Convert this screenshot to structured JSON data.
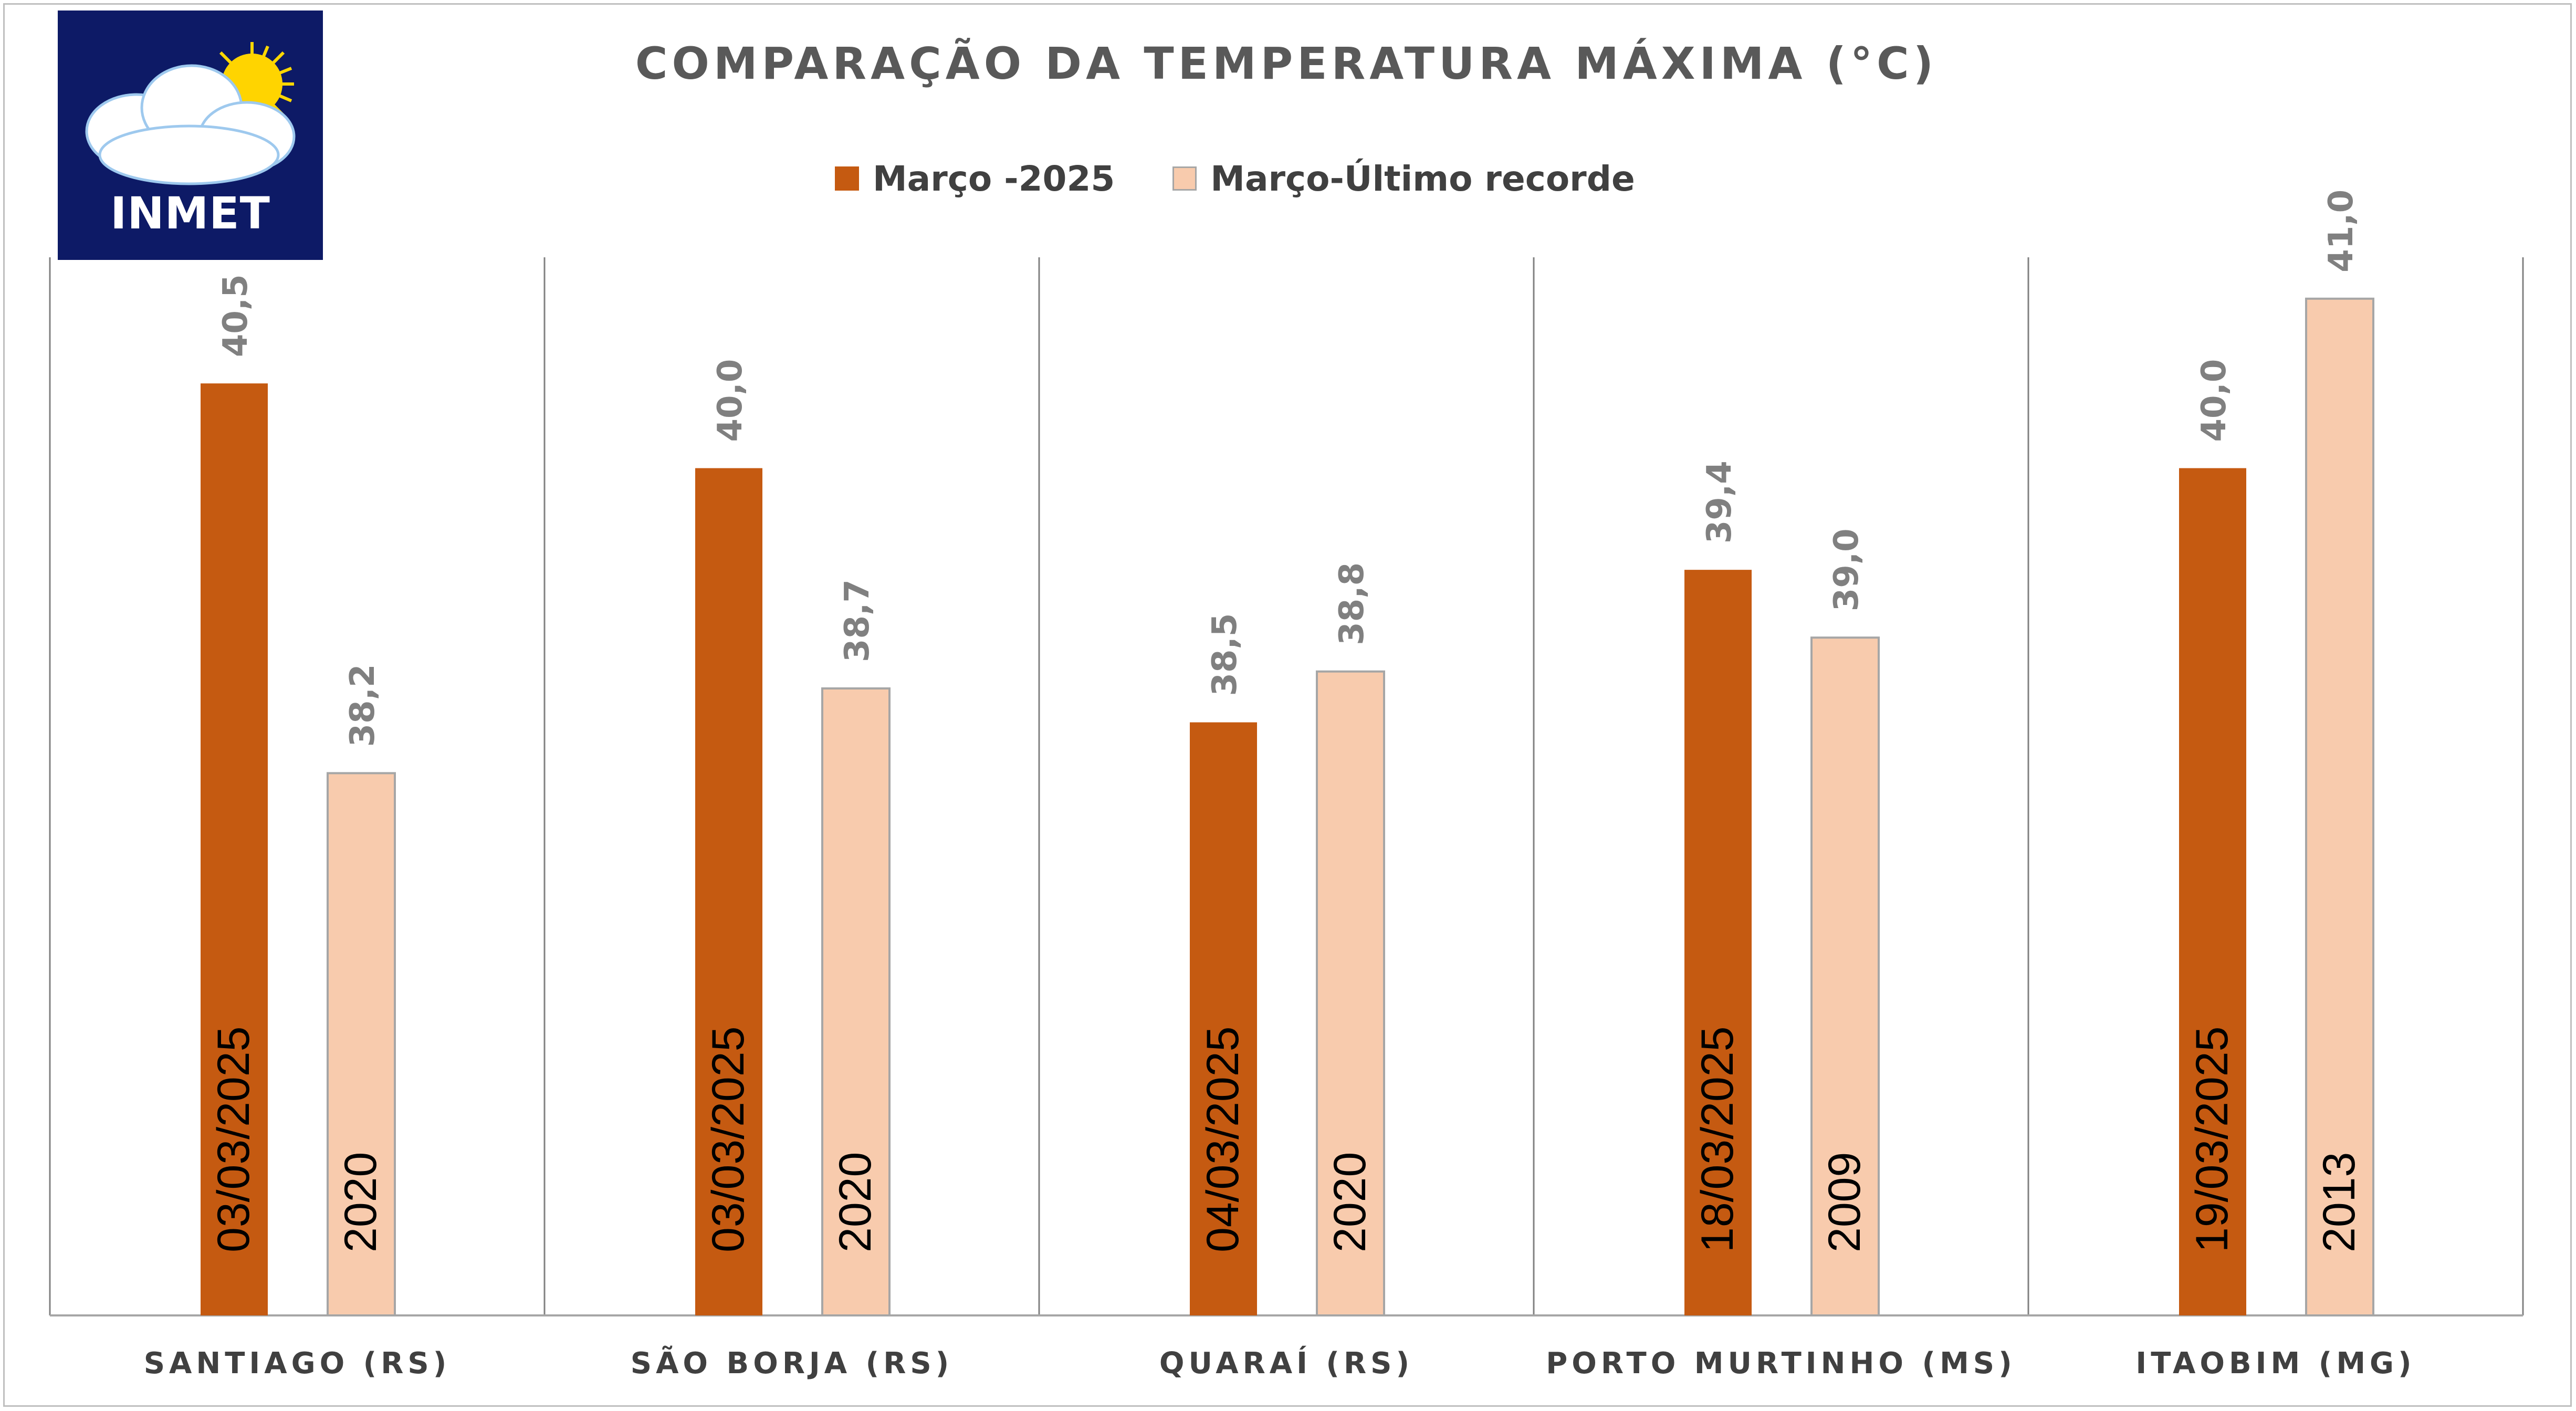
{
  "logo": {
    "text": "INMET"
  },
  "chart_data": {
    "type": "bar",
    "title": "COMPARAÇÃO DA TEMPERATURA MÁXIMA (°C)",
    "categories": [
      "SANTIAGO (RS)",
      "SÃO BORJA (RS)",
      "QUARAÍ (RS)",
      "PORTO MURTINHO (MS)",
      "ITAOBIM (MG)"
    ],
    "series": [
      {
        "name": "Março -2025",
        "color": "#c55a11",
        "values": [
          40.5,
          40.0,
          38.5,
          39.4,
          40.0
        ],
        "value_labels": [
          "40,5",
          "40,0",
          "38,5",
          "39,4",
          "40,0"
        ],
        "inner_labels": [
          "03/03/2025",
          "03/03/2025",
          "04/03/2025",
          "18/03/2025",
          "19/03/2025"
        ]
      },
      {
        "name": "Março-Último recorde",
        "color": "#f8cbad",
        "values": [
          38.2,
          38.7,
          38.8,
          39.0,
          41.0
        ],
        "value_labels": [
          "38,2",
          "38,7",
          "38,8",
          "39,0",
          "41,0"
        ],
        "inner_labels": [
          "2020",
          "2020",
          "2020",
          "2009",
          "2013"
        ]
      }
    ],
    "ylim": [
      35.0,
      42.0
    ],
    "legend": "top-center",
    "grid": false
  }
}
